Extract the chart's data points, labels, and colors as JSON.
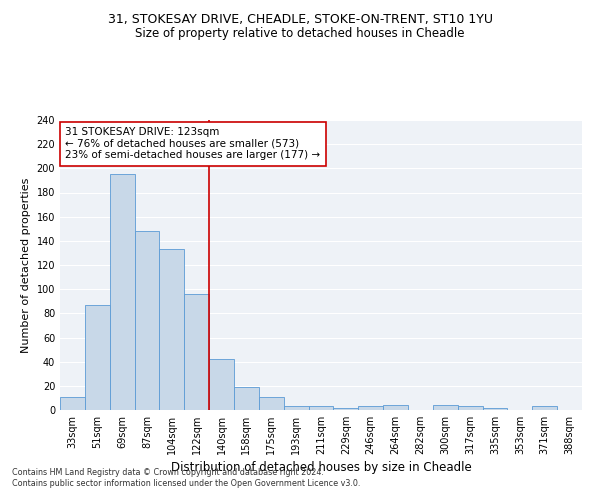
{
  "title1": "31, STOKESAY DRIVE, CHEADLE, STOKE-ON-TRENT, ST10 1YU",
  "title2": "Size of property relative to detached houses in Cheadle",
  "xlabel": "Distribution of detached houses by size in Cheadle",
  "ylabel": "Number of detached properties",
  "footnote": "Contains HM Land Registry data © Crown copyright and database right 2024.\nContains public sector information licensed under the Open Government Licence v3.0.",
  "bin_labels": [
    "33sqm",
    "51sqm",
    "69sqm",
    "87sqm",
    "104sqm",
    "122sqm",
    "140sqm",
    "158sqm",
    "175sqm",
    "193sqm",
    "211sqm",
    "229sqm",
    "246sqm",
    "264sqm",
    "282sqm",
    "300sqm",
    "317sqm",
    "335sqm",
    "353sqm",
    "371sqm",
    "388sqm"
  ],
  "bar_heights": [
    11,
    87,
    195,
    148,
    133,
    96,
    42,
    19,
    11,
    3,
    3,
    2,
    3,
    4,
    0,
    4,
    3,
    2,
    0,
    3,
    0
  ],
  "bar_color": "#c8d8e8",
  "bar_edge_color": "#5b9bd5",
  "vline_x_index": 5.5,
  "vline_color": "#cc0000",
  "annotation_line1": "31 STOKESAY DRIVE: 123sqm",
  "annotation_line2": "← 76% of detached houses are smaller (573)",
  "annotation_line3": "23% of semi-detached houses are larger (177) →",
  "annotation_box_color": "#ffffff",
  "annotation_box_edgecolor": "#cc0000",
  "ylim": [
    0,
    240
  ],
  "yticks": [
    0,
    20,
    40,
    60,
    80,
    100,
    120,
    140,
    160,
    180,
    200,
    220,
    240
  ],
  "bg_color": "#eef2f7",
  "grid_color": "#ffffff",
  "title1_fontsize": 9,
  "title2_fontsize": 8.5,
  "xlabel_fontsize": 8.5,
  "ylabel_fontsize": 8,
  "tick_fontsize": 7,
  "annotation_fontsize": 7.5,
  "footnote_fontsize": 5.8
}
